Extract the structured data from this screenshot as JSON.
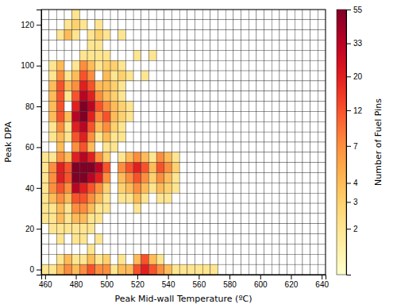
{
  "chart_data": {
    "type": "heatmap",
    "x_label": "Peak Mid-wall Temperature (ºC)",
    "y_label": "Peak DPA",
    "x": [
      460,
      465,
      470,
      475,
      480,
      485,
      490,
      495,
      500,
      505,
      510,
      515,
      520,
      525,
      530,
      535,
      540,
      545,
      550,
      555,
      560,
      565,
      570,
      575,
      580,
      585,
      590,
      595,
      600,
      605,
      610,
      615,
      620,
      625,
      630,
      635,
      640
    ],
    "y": [
      125,
      120,
      115,
      110,
      105,
      100,
      95,
      90,
      85,
      80,
      75,
      70,
      65,
      60,
      55,
      50,
      45,
      40,
      35,
      30,
      25,
      20,
      15,
      10,
      5,
      0
    ],
    "xlim": [
      457.5,
      642.5
    ],
    "ylim": [
      -2.5,
      127.5
    ],
    "xticks": [
      460,
      480,
      500,
      520,
      540,
      560,
      580,
      600,
      620,
      640
    ],
    "yticks": [
      0,
      20,
      40,
      60,
      80,
      100,
      120
    ],
    "colorbar_label": "Number of Fuel Pins",
    "colorbar_range": [
      1,
      55
    ],
    "colorbar_ticks": [
      2,
      3,
      4,
      7,
      12,
      20,
      33,
      55
    ],
    "log": "color",
    "values": [
      [
        0,
        0,
        0,
        0,
        2,
        0,
        0,
        0,
        0,
        0,
        0,
        0,
        0,
        0,
        0,
        0,
        0,
        0,
        0,
        0,
        0,
        0,
        0,
        0,
        0,
        0,
        0,
        0,
        0,
        0,
        0,
        0,
        0,
        0,
        0,
        0,
        0
      ],
      [
        0,
        0,
        0,
        2,
        3,
        2,
        0,
        2,
        0,
        0,
        0,
        0,
        0,
        0,
        0,
        0,
        0,
        0,
        0,
        0,
        0,
        0,
        0,
        0,
        0,
        0,
        0,
        0,
        0,
        0,
        0,
        0,
        0,
        0,
        0,
        0,
        0
      ],
      [
        0,
        0,
        2,
        4,
        2,
        0,
        2,
        3,
        2,
        0,
        2,
        0,
        0,
        0,
        0,
        0,
        0,
        0,
        0,
        0,
        0,
        0,
        0,
        0,
        0,
        0,
        0,
        0,
        0,
        0,
        0,
        0,
        0,
        0,
        0,
        0,
        0
      ],
      [
        0,
        0,
        0,
        0,
        0,
        0,
        2,
        2,
        0,
        0,
        0,
        0,
        0,
        0,
        0,
        0,
        0,
        0,
        0,
        0,
        0,
        0,
        0,
        0,
        0,
        0,
        0,
        0,
        0,
        0,
        0,
        0,
        0,
        0,
        0,
        0,
        0
      ],
      [
        0,
        0,
        0,
        0,
        0,
        2,
        2,
        2,
        2,
        0,
        0,
        0,
        2,
        0,
        2,
        0,
        0,
        0,
        0,
        0,
        0,
        0,
        0,
        0,
        0,
        0,
        0,
        0,
        0,
        0,
        0,
        0,
        0,
        0,
        0,
        0,
        0
      ],
      [
        0,
        2,
        4,
        0,
        2,
        7,
        4,
        2,
        3,
        3,
        2,
        0,
        0,
        0,
        0,
        0,
        0,
        0,
        0,
        0,
        0,
        0,
        0,
        0,
        0,
        0,
        0,
        0,
        0,
        0,
        0,
        0,
        0,
        0,
        0,
        0,
        0
      ],
      [
        0,
        2,
        7,
        2,
        4,
        12,
        7,
        0,
        4,
        2,
        3,
        2,
        0,
        2,
        0,
        0,
        0,
        0,
        0,
        0,
        0,
        0,
        0,
        0,
        0,
        0,
        0,
        0,
        0,
        0,
        0,
        0,
        0,
        0,
        0,
        0,
        0
      ],
      [
        0,
        4,
        12,
        4,
        7,
        20,
        12,
        4,
        4,
        3,
        2,
        0,
        0,
        0,
        0,
        0,
        0,
        0,
        0,
        0,
        0,
        0,
        0,
        0,
        0,
        0,
        0,
        0,
        0,
        0,
        0,
        0,
        0,
        0,
        0,
        0,
        0
      ],
      [
        0,
        4,
        12,
        2,
        12,
        33,
        20,
        7,
        4,
        3,
        2,
        0,
        0,
        0,
        0,
        0,
        0,
        0,
        0,
        0,
        0,
        0,
        0,
        0,
        0,
        0,
        0,
        0,
        0,
        0,
        0,
        0,
        0,
        0,
        0,
        0,
        0
      ],
      [
        0,
        4,
        12,
        0,
        20,
        55,
        33,
        12,
        7,
        4,
        3,
        2,
        0,
        0,
        0,
        0,
        0,
        0,
        0,
        0,
        0,
        0,
        0,
        0,
        0,
        0,
        0,
        0,
        0,
        0,
        0,
        0,
        0,
        0,
        0,
        0,
        0
      ],
      [
        0,
        4,
        12,
        4,
        33,
        55,
        20,
        7,
        12,
        4,
        3,
        2,
        0,
        0,
        0,
        0,
        0,
        0,
        0,
        0,
        0,
        0,
        0,
        0,
        0,
        0,
        0,
        0,
        0,
        0,
        0,
        0,
        0,
        0,
        0,
        0,
        0
      ],
      [
        0,
        2,
        7,
        2,
        20,
        33,
        12,
        4,
        7,
        3,
        2,
        0,
        0,
        0,
        0,
        0,
        0,
        0,
        0,
        0,
        0,
        0,
        0,
        0,
        0,
        0,
        0,
        0,
        0,
        0,
        0,
        0,
        0,
        0,
        0,
        0,
        0
      ],
      [
        0,
        2,
        4,
        2,
        12,
        20,
        7,
        2,
        4,
        2,
        2,
        0,
        0,
        0,
        0,
        0,
        0,
        0,
        0,
        0,
        0,
        0,
        0,
        0,
        0,
        0,
        0,
        0,
        0,
        0,
        0,
        0,
        0,
        0,
        0,
        0,
        0
      ],
      [
        0,
        0,
        4,
        0,
        7,
        12,
        4,
        0,
        2,
        2,
        0,
        0,
        0,
        0,
        0,
        0,
        0,
        0,
        0,
        0,
        0,
        0,
        0,
        0,
        0,
        0,
        0,
        0,
        0,
        0,
        0,
        0,
        0,
        0,
        0,
        0,
        0
      ],
      [
        2,
        2,
        7,
        4,
        20,
        33,
        20,
        7,
        3,
        0,
        2,
        4,
        7,
        4,
        2,
        7,
        4,
        2,
        0,
        0,
        0,
        0,
        0,
        0,
        0,
        0,
        0,
        0,
        0,
        0,
        0,
        0,
        0,
        0,
        0,
        0,
        0
      ],
      [
        2,
        7,
        20,
        12,
        55,
        55,
        55,
        33,
        12,
        0,
        7,
        12,
        20,
        12,
        4,
        12,
        7,
        3,
        0,
        0,
        0,
        0,
        0,
        0,
        0,
        0,
        0,
        0,
        0,
        0,
        0,
        0,
        0,
        0,
        0,
        0,
        0
      ],
      [
        2,
        7,
        20,
        12,
        55,
        55,
        33,
        20,
        7,
        0,
        4,
        7,
        12,
        7,
        3,
        7,
        4,
        2,
        0,
        0,
        0,
        0,
        0,
        0,
        0,
        0,
        0,
        0,
        0,
        0,
        0,
        0,
        0,
        0,
        0,
        0,
        0
      ],
      [
        2,
        7,
        12,
        7,
        33,
        20,
        12,
        7,
        3,
        0,
        3,
        4,
        7,
        4,
        2,
        4,
        3,
        2,
        0,
        0,
        0,
        0,
        0,
        0,
        0,
        0,
        0,
        0,
        0,
        0,
        0,
        0,
        0,
        0,
        0,
        0,
        0
      ],
      [
        2,
        4,
        7,
        4,
        12,
        12,
        7,
        4,
        2,
        0,
        2,
        2,
        4,
        2,
        0,
        2,
        2,
        0,
        0,
        0,
        0,
        0,
        0,
        0,
        0,
        0,
        0,
        0,
        0,
        0,
        0,
        0,
        0,
        0,
        0,
        0,
        0
      ],
      [
        2,
        2,
        4,
        2,
        7,
        7,
        4,
        2,
        2,
        0,
        0,
        0,
        2,
        0,
        0,
        0,
        0,
        0,
        0,
        0,
        0,
        0,
        0,
        0,
        0,
        0,
        0,
        0,
        0,
        0,
        0,
        0,
        0,
        0,
        0,
        0,
        0
      ],
      [
        2,
        2,
        4,
        2,
        4,
        4,
        2,
        2,
        0,
        0,
        0,
        0,
        0,
        0,
        0,
        0,
        0,
        0,
        0,
        0,
        0,
        0,
        0,
        0,
        0,
        0,
        0,
        0,
        0,
        0,
        0,
        0,
        0,
        0,
        0,
        0,
        0
      ],
      [
        0,
        2,
        2,
        2,
        2,
        2,
        2,
        0,
        0,
        0,
        0,
        0,
        0,
        0,
        0,
        0,
        0,
        0,
        0,
        0,
        0,
        0,
        0,
        0,
        0,
        0,
        0,
        0,
        0,
        0,
        0,
        0,
        0,
        0,
        0,
        0,
        0
      ],
      [
        0,
        0,
        2,
        0,
        2,
        2,
        0,
        2,
        0,
        0,
        0,
        0,
        0,
        0,
        0,
        0,
        0,
        0,
        0,
        0,
        0,
        0,
        0,
        0,
        0,
        0,
        0,
        0,
        0,
        0,
        0,
        0,
        0,
        0,
        0,
        0,
        0
      ],
      [
        0,
        0,
        0,
        0,
        0,
        0,
        2,
        0,
        0,
        0,
        0,
        0,
        0,
        0,
        0,
        0,
        0,
        0,
        0,
        0,
        0,
        0,
        0,
        0,
        0,
        0,
        0,
        0,
        0,
        0,
        0,
        0,
        0,
        0,
        0,
        0,
        0
      ],
      [
        0,
        0,
        2,
        4,
        2,
        2,
        4,
        2,
        3,
        0,
        2,
        0,
        4,
        12,
        4,
        2,
        0,
        0,
        0,
        0,
        0,
        0,
        0,
        0,
        0,
        0,
        0,
        0,
        0,
        0,
        0,
        0,
        0,
        0,
        0,
        0,
        0
      ],
      [
        2,
        2,
        4,
        7,
        4,
        7,
        12,
        7,
        7,
        2,
        4,
        4,
        12,
        20,
        12,
        7,
        4,
        2,
        2,
        2,
        2,
        2,
        2,
        0,
        0,
        0,
        0,
        0,
        0,
        0,
        0,
        0,
        0,
        0,
        0,
        0,
        0
      ]
    ]
  }
}
